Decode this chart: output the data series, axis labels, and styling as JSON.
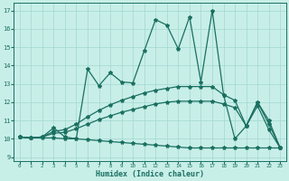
{
  "xlabel": "Humidex (Indice chaleur)",
  "xlim": [
    -0.5,
    23.5
  ],
  "ylim": [
    8.8,
    17.4
  ],
  "yticks": [
    9,
    10,
    11,
    12,
    13,
    14,
    15,
    16,
    17
  ],
  "xticks": [
    0,
    1,
    2,
    3,
    4,
    5,
    6,
    7,
    8,
    9,
    10,
    11,
    12,
    13,
    14,
    15,
    16,
    17,
    18,
    19,
    20,
    21,
    22,
    23
  ],
  "bg_color": "#c8eee8",
  "grid_color": "#a0d8d0",
  "line_color": "#1a7060",
  "line_width": 0.9,
  "marker": "*",
  "marker_size": 3.0,
  "series": [
    [
      10.1,
      10.05,
      10.1,
      10.6,
      10.1,
      10.0,
      13.8,
      12.9,
      13.6,
      13.1,
      13.05,
      14.8,
      16.5,
      16.2,
      14.9,
      16.65,
      13.1,
      17.0,
      12.4,
      10.0,
      10.7,
      12.0,
      11.0,
      9.5
    ],
    [
      10.1,
      10.05,
      10.1,
      10.4,
      10.5,
      10.8,
      11.2,
      11.55,
      11.85,
      12.1,
      12.3,
      12.5,
      12.65,
      12.75,
      12.85,
      12.85,
      12.85,
      12.85,
      12.4,
      12.1,
      10.7,
      12.0,
      10.8,
      9.5
    ],
    [
      10.1,
      10.05,
      10.1,
      10.3,
      10.35,
      10.55,
      10.8,
      11.05,
      11.25,
      11.45,
      11.6,
      11.75,
      11.9,
      12.0,
      12.05,
      12.05,
      12.05,
      12.05,
      11.9,
      11.7,
      10.7,
      11.8,
      10.5,
      9.5
    ],
    [
      10.1,
      10.05,
      10.05,
      10.05,
      10.0,
      10.0,
      9.95,
      9.9,
      9.85,
      9.8,
      9.75,
      9.7,
      9.65,
      9.6,
      9.55,
      9.5,
      9.5,
      9.5,
      9.5,
      9.5,
      9.5,
      9.5,
      9.5,
      9.5
    ]
  ]
}
